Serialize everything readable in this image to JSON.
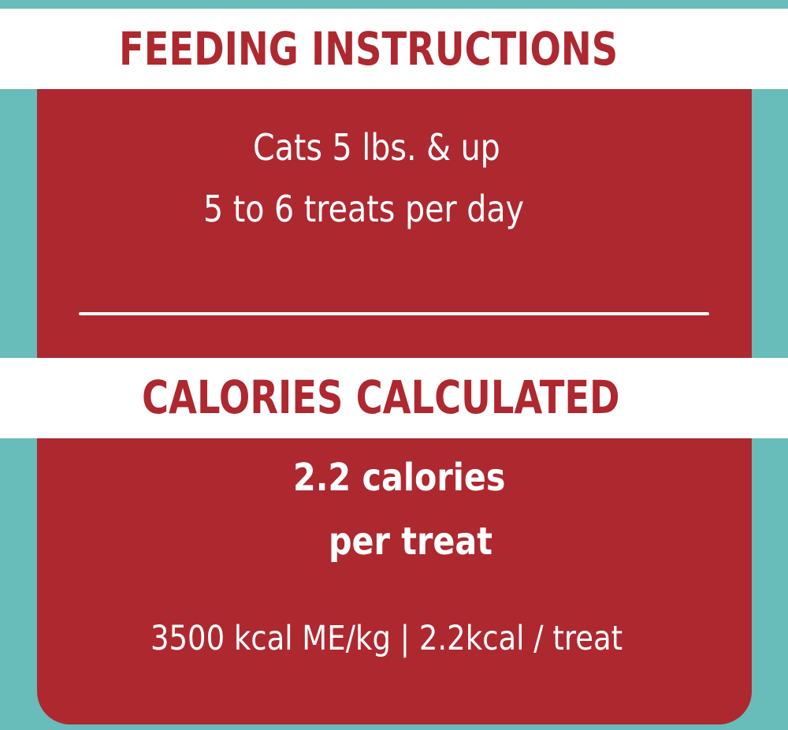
{
  "feeding": {
    "heading": "FEEDING INSTRUCTIONS",
    "line1": "Cats 5 lbs. & up",
    "line2": "5 to 6 treats per day"
  },
  "calories": {
    "heading": "CALORIES CALCULATED",
    "line1": "2.2 calories",
    "line2": "per treat",
    "note": "3500 kcal ME/kg | 2.2kcal / treat"
  },
  "colors": {
    "background_teal": "#68bcb9",
    "panel_red": "#ae2830",
    "band_white": "#ffffff",
    "text_white": "#ffffff"
  }
}
